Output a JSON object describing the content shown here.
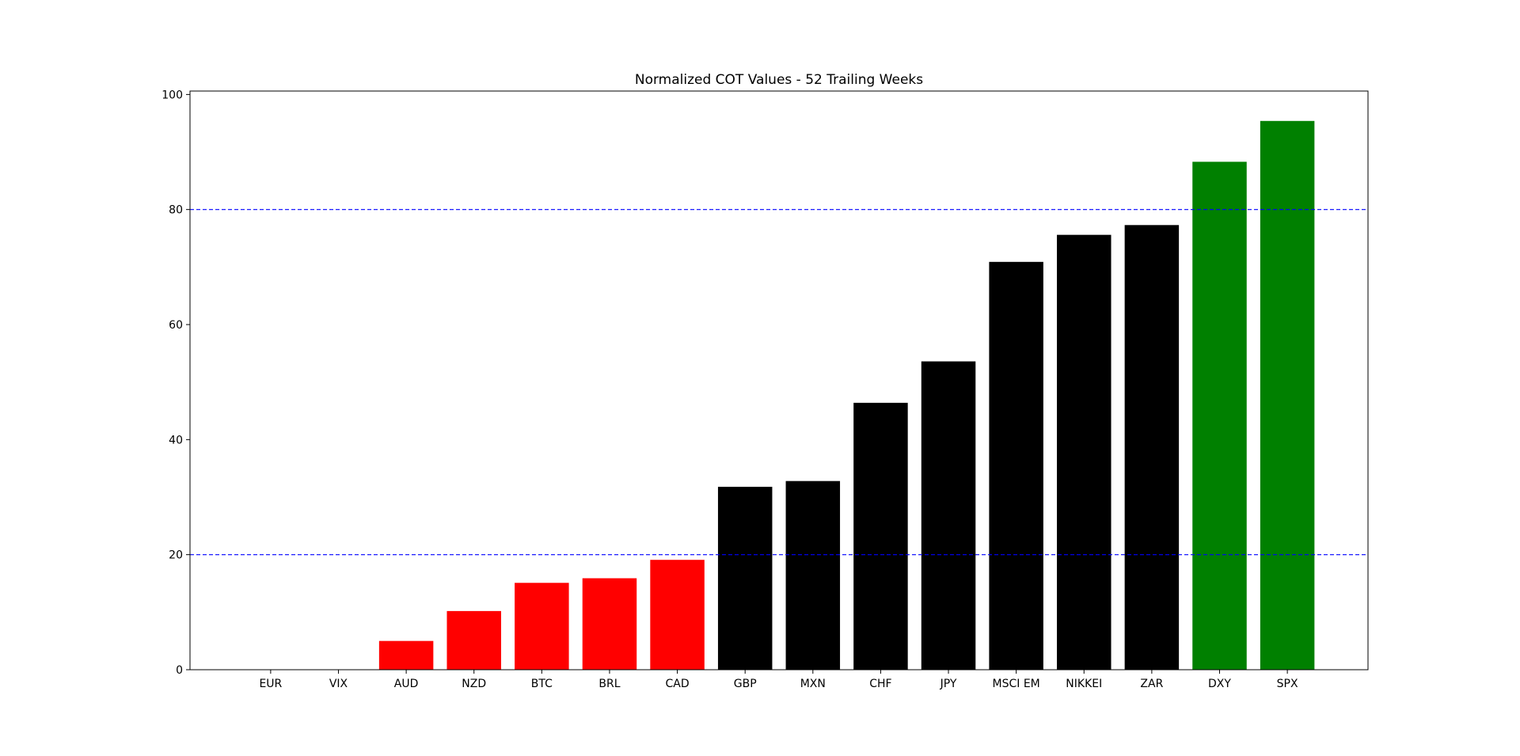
{
  "chart_data": {
    "type": "bar",
    "title": "Normalized COT Values - 52 Trailing Weeks",
    "categories": [
      "EUR",
      "VIX",
      "AUD",
      "NZD",
      "BTC",
      "BRL",
      "CAD",
      "GBP",
      "MXN",
      "CHF",
      "JPY",
      "MSCI EM",
      "NIKKEI",
      "ZAR",
      "DXY",
      "SPX"
    ],
    "values": [
      0,
      0,
      5.0,
      10.2,
      15.1,
      15.9,
      19.1,
      31.8,
      32.8,
      46.4,
      53.6,
      70.9,
      75.6,
      77.3,
      88.3,
      95.4
    ],
    "colors": [
      "#ff0000",
      "#ff0000",
      "#ff0000",
      "#ff0000",
      "#ff0000",
      "#ff0000",
      "#ff0000",
      "#000000",
      "#000000",
      "#000000",
      "#000000",
      "#000000",
      "#000000",
      "#000000",
      "#008000",
      "#008000"
    ],
    "ylim": [
      0,
      100.6
    ],
    "yticks": [
      0,
      20,
      40,
      60,
      80,
      100
    ],
    "reference_lines": [
      {
        "value": 20,
        "color": "#0000ff"
      },
      {
        "value": 80,
        "color": "#0000ff"
      }
    ]
  }
}
